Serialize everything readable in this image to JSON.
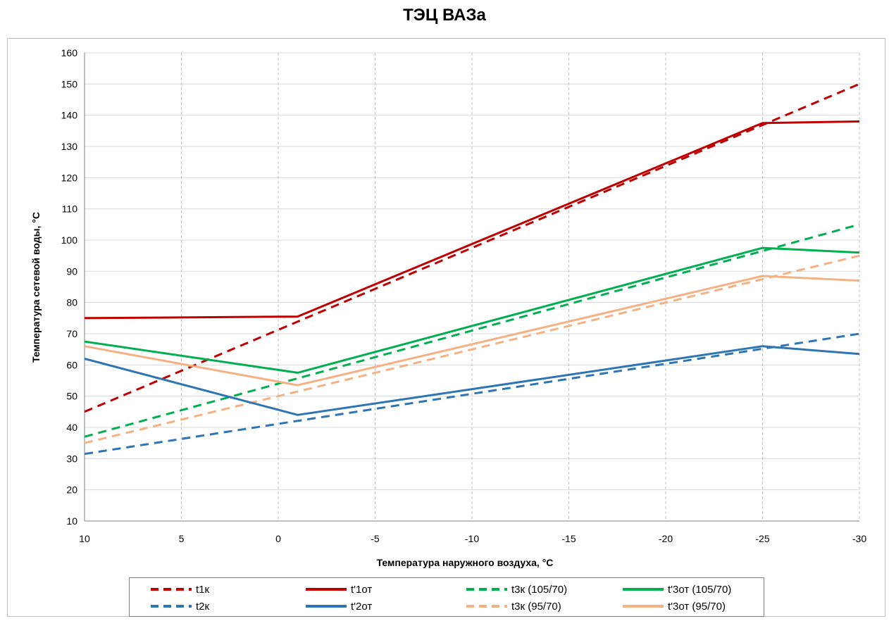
{
  "chart_data": {
    "type": "line",
    "title": "ТЭЦ ВАЗа",
    "xlabel": "Температура наружного воздуха, °С",
    "ylabel": "Температура сетевой воды, °С",
    "xlim": [
      10,
      -30
    ],
    "ylim": [
      10,
      160
    ],
    "x_ticks": [
      "10",
      "5",
      "0",
      "-5",
      "-10",
      "-15",
      "-20",
      "-25",
      "-30"
    ],
    "y_ticks": [
      "10",
      "20",
      "30",
      "40",
      "50",
      "60",
      "70",
      "80",
      "90",
      "100",
      "110",
      "120",
      "130",
      "140",
      "150",
      "160"
    ],
    "grid": true,
    "legend_position": "bottom",
    "series": [
      {
        "name": "t1к",
        "color": "#c00000",
        "dash": true,
        "x": [
          10,
          -30
        ],
        "y": [
          45,
          150
        ]
      },
      {
        "name": "t'1от",
        "color": "#c00000",
        "dash": false,
        "x": [
          10,
          -1,
          -25,
          -30
        ],
        "y": [
          75,
          75.5,
          137.5,
          138
        ]
      },
      {
        "name": "t3к (105/70)",
        "color": "#00b050",
        "dash": true,
        "x": [
          10,
          -30
        ],
        "y": [
          37,
          105
        ]
      },
      {
        "name": "t'3от (105/70)",
        "color": "#00b050",
        "dash": false,
        "x": [
          10,
          -1,
          -25,
          -30
        ],
        "y": [
          67.5,
          57.5,
          97.5,
          96
        ]
      },
      {
        "name": "t2к",
        "color": "#2e75b6",
        "dash": true,
        "x": [
          10,
          -30
        ],
        "y": [
          31.5,
          70
        ]
      },
      {
        "name": "t'2от",
        "color": "#2e75b6",
        "dash": false,
        "x": [
          10,
          -1,
          -25,
          -30
        ],
        "y": [
          62,
          44,
          66,
          63.5
        ]
      },
      {
        "name": "t3к (95/70)",
        "color": "#f4b183",
        "dash": true,
        "x": [
          10,
          -30
        ],
        "y": [
          35,
          95
        ]
      },
      {
        "name": "t'3от (95/70)",
        "color": "#f4b183",
        "dash": false,
        "x": [
          10,
          -1,
          -25,
          -30
        ],
        "y": [
          66,
          53.5,
          88.5,
          87
        ]
      }
    ]
  },
  "legend_order": [
    4,
    5,
    6,
    7,
    0,
    1,
    2,
    3
  ]
}
